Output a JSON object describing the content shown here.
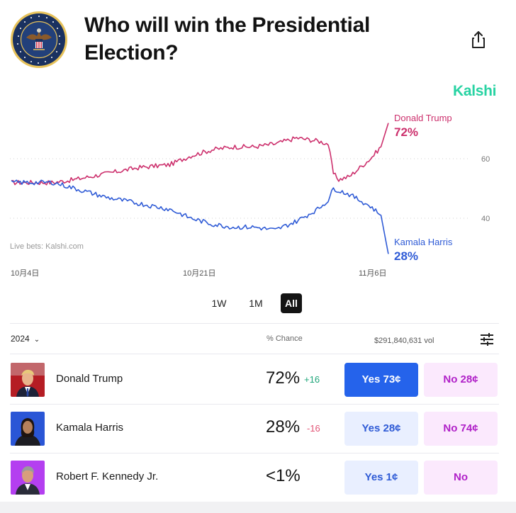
{
  "header": {
    "title": "Who will win the Presidential Election?",
    "seal_text": "SEAL OF THE PRESIDENT OF THE UNITED STATES"
  },
  "brand": "Kalshi",
  "chart_data": {
    "type": "line",
    "x_ticks": [
      "10月4日",
      "10月21日",
      "11月6日"
    ],
    "y_ticks": [
      "60",
      "40"
    ],
    "watermark": "Live bets: Kalshi.com",
    "series": [
      {
        "name": "Donald Trump",
        "color": "#cc2f6c",
        "end_label": "72%",
        "points": [
          [
            0,
            52
          ],
          [
            4,
            52
          ],
          [
            6,
            53
          ],
          [
            9,
            55
          ],
          [
            12,
            57
          ],
          [
            15,
            58
          ],
          [
            17,
            61
          ],
          [
            19,
            63
          ],
          [
            21,
            64
          ],
          [
            23,
            64
          ],
          [
            25,
            65
          ],
          [
            27,
            67
          ],
          [
            29,
            66
          ],
          [
            30,
            65
          ],
          [
            30.5,
            55
          ],
          [
            31,
            53
          ],
          [
            32,
            54
          ],
          [
            33,
            57
          ],
          [
            34,
            60
          ],
          [
            35,
            64
          ],
          [
            35.7,
            72
          ]
        ]
      },
      {
        "name": "Kamala Harris",
        "color": "#2f5bd6",
        "end_label": "28%",
        "points": [
          [
            0,
            52
          ],
          [
            4,
            52
          ],
          [
            6,
            50
          ],
          [
            9,
            47
          ],
          [
            12,
            45
          ],
          [
            15,
            43
          ],
          [
            17,
            40
          ],
          [
            19,
            38
          ],
          [
            21,
            37
          ],
          [
            23,
            37
          ],
          [
            25,
            36
          ],
          [
            27,
            39
          ],
          [
            29,
            43
          ],
          [
            30,
            46
          ],
          [
            30.5,
            50
          ],
          [
            32,
            48
          ],
          [
            33,
            46
          ],
          [
            34,
            44
          ],
          [
            35,
            41
          ],
          [
            35.7,
            28
          ]
        ]
      }
    ]
  },
  "time_tabs": [
    "1W",
    "1M",
    "All"
  ],
  "active_tab": "All",
  "table": {
    "year": "2024",
    "chance_header": "% Chance",
    "volume": "$291,840,631 vol",
    "rows": [
      {
        "name": "Donald Trump",
        "chance": "72%",
        "delta": "+16",
        "delta_color": "#1fa67a",
        "yes": "Yes 73¢",
        "no": "No 28¢"
      },
      {
        "name": "Kamala Harris",
        "chance": "28%",
        "delta": "-16",
        "delta_color": "#e25577",
        "yes": "Yes 28¢",
        "no": "No 74¢"
      },
      {
        "name": "Robert F. Kennedy Jr.",
        "chance": "<1%",
        "delta": "",
        "yes": "Yes 1¢",
        "no": "No"
      }
    ]
  },
  "icons": {
    "share": "share-icon",
    "filter": "sliders-icon",
    "chevron": "chevron-down-icon"
  }
}
